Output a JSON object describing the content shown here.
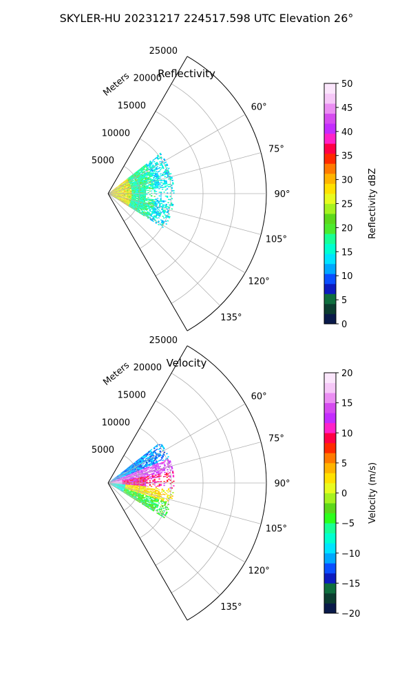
{
  "figure": {
    "title": "SKYLER-HU  20231217  224517.598 UTC Elevation 26°"
  },
  "chart_data": [
    {
      "type": "heatmap",
      "projection": "polar-sector",
      "title": "Reflectivity",
      "radial_axis_label": "Meters",
      "azimuth_range_deg": [
        30,
        150
      ],
      "range_max_m": 25000,
      "radial_ticks_m": [
        5000,
        10000,
        15000,
        20000,
        25000
      ],
      "radial_tick_labels": [
        "5000",
        "10000",
        "15000",
        "20000",
        "25000"
      ],
      "azimuth_ticks_deg": [
        60,
        75,
        90,
        105,
        120,
        135
      ],
      "azimuth_tick_labels": [
        "60°",
        "75°",
        "90°",
        "105°",
        "120°",
        "135°"
      ],
      "grid": true,
      "colorbar": {
        "label": "Reflectivity dBZ",
        "min": 0,
        "max": 50,
        "ticks": [
          0,
          5,
          10,
          15,
          20,
          25,
          30,
          35,
          40,
          45,
          50
        ],
        "tick_labels": [
          "0",
          "5",
          "10",
          "15",
          "20",
          "25",
          "30",
          "35",
          "40",
          "45",
          "50"
        ],
        "colors": [
          "#0a1a4a",
          "#0c3d30",
          "#0f6e3e",
          "#0d1bbf",
          "#0a4fff",
          "#00a8ff",
          "#00e4ff",
          "#00ffd0",
          "#18ff96",
          "#4cea2e",
          "#5cd81a",
          "#a6f21f",
          "#e8fb1f",
          "#ffe100",
          "#ffb400",
          "#ff7a00",
          "#ff2a00",
          "#ff0046",
          "#ff22c8",
          "#c42cff",
          "#d64cf0",
          "#eb8ef3",
          "#f6c8f8",
          "#fbe6fc"
        ]
      },
      "field": {
        "azimuth_span_deg": [
          52,
          122
        ],
        "range_span_m": [
          0,
          10500
        ],
        "value_range": [
          12,
          33
        ],
        "typical_value": 17
      }
    },
    {
      "type": "heatmap",
      "projection": "polar-sector",
      "title": "Velocity",
      "radial_axis_label": "Meters",
      "azimuth_range_deg": [
        30,
        150
      ],
      "range_max_m": 25000,
      "radial_ticks_m": [
        5000,
        10000,
        15000,
        20000,
        25000
      ],
      "radial_tick_labels": [
        "5000",
        "10000",
        "15000",
        "20000",
        "25000"
      ],
      "azimuth_ticks_deg": [
        60,
        75,
        90,
        105,
        120,
        135
      ],
      "azimuth_tick_labels": [
        "60°",
        "75°",
        "90°",
        "105°",
        "120°",
        "135°"
      ],
      "grid": true,
      "colorbar": {
        "label": "Velocity (m/s)",
        "min": -20,
        "max": 20,
        "ticks": [
          -20,
          -15,
          -10,
          -5,
          0,
          5,
          10,
          15,
          20
        ],
        "tick_labels": [
          "−20",
          "−15",
          "−10",
          "−5",
          "0",
          "5",
          "10",
          "15",
          "20"
        ],
        "colors": [
          "#0a1a4a",
          "#0c3d30",
          "#0f6e3e",
          "#0d1bbf",
          "#0a4fff",
          "#00a8ff",
          "#00e4ff",
          "#00ffd0",
          "#18ff96",
          "#2cff1c",
          "#5cd81a",
          "#a6f21f",
          "#e8fb1f",
          "#ffe100",
          "#ffb400",
          "#ff7a00",
          "#ff2a00",
          "#ff0046",
          "#ff22c8",
          "#c42cff",
          "#d64cf0",
          "#eb8ef3",
          "#f6c8f8",
          "#fbe6fc"
        ]
      },
      "field": {
        "azimuth_span_deg": [
          52,
          122
        ],
        "range_span_m": [
          0,
          10500
        ],
        "value_range": [
          -13,
          16
        ],
        "sectors": [
          {
            "az": [
              52,
              68
            ],
            "value": -11
          },
          {
            "az": [
              68,
              80
            ],
            "value": 14
          },
          {
            "az": [
              80,
              95
            ],
            "value": 10
          },
          {
            "az": [
              95,
              108
            ],
            "value": 2
          },
          {
            "az": [
              108,
              122
            ],
            "value": -4
          }
        ]
      }
    }
  ]
}
